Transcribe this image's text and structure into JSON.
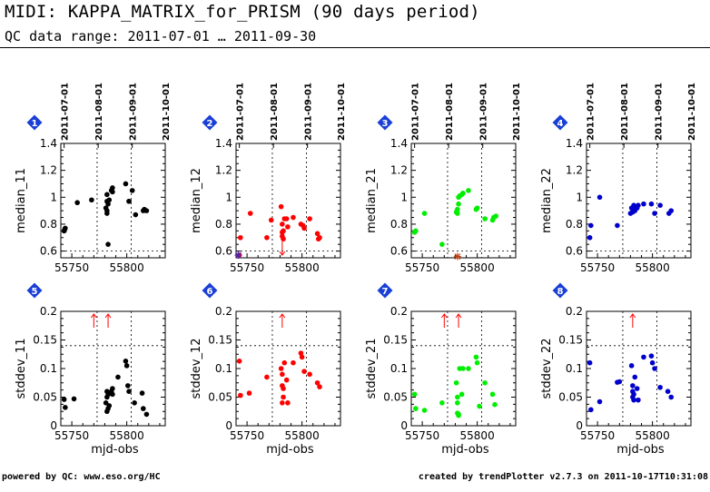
{
  "header": {
    "title": "MIDI: KAPPA_MATRIX_for_PRISM (90 days period)",
    "subtitle": "QC data range: 2011-07-01 … 2011-09-30"
  },
  "footer": {
    "left": "powered by QC: www.eso.org/HC",
    "right": "created by trendPlotter v2.7.3 on 2011-10-17T10:31:08"
  },
  "colors": {
    "series_11": "#000000",
    "series_12": "#ff0000",
    "series_21": "#00ee00",
    "series_22": "#0000cc",
    "badge": "#1a3fd6",
    "outlier_arrow": "#ff0000"
  },
  "chart_data": [
    {
      "panel": "1",
      "type": "scatter",
      "color": "#000000",
      "ylabel": "median_11",
      "xlim": [
        55740,
        55835
      ],
      "ylim": [
        0.55,
        1.4
      ],
      "yticks": [
        "0.6",
        "0.8",
        "1",
        "1.2",
        "1.4"
      ],
      "xticks": [
        "55750",
        "55800"
      ],
      "date_ticks": [
        "2011-07-01",
        "2011-08-01",
        "2011-09-01",
        "2011-10-01"
      ],
      "ref_x": [
        55773,
        55804
      ],
      "ref_y": [
        0.6
      ],
      "points": [
        [
          55743,
          0.75
        ],
        [
          55743.5,
          0.76
        ],
        [
          55744,
          0.77
        ],
        [
          55755,
          0.96
        ],
        [
          55768,
          0.98
        ],
        [
          55781,
          0.92
        ],
        [
          55782,
          0.97
        ],
        [
          55782,
          1.02
        ],
        [
          55782,
          0.88
        ],
        [
          55782,
          0.9
        ],
        [
          55783,
          0.95
        ],
        [
          55783,
          0.65
        ],
        [
          55784,
          0.98
        ],
        [
          55786,
          1.05
        ],
        [
          55787,
          1.07
        ],
        [
          55787,
          1.04
        ],
        [
          55799,
          1.1
        ],
        [
          55802,
          0.97
        ],
        [
          55802,
          0.97
        ],
        [
          55805,
          1.05
        ],
        [
          55808,
          0.87
        ],
        [
          55815,
          0.9
        ],
        [
          55816,
          0.91
        ],
        [
          55818,
          0.9
        ]
      ],
      "outliers_up": [],
      "outliers_down": []
    },
    {
      "panel": "2",
      "type": "scatter",
      "color": "#ff0000",
      "ylabel": "median_12",
      "xlim": [
        55740,
        55835
      ],
      "ylim": [
        0.55,
        1.4
      ],
      "yticks": [
        "0.6",
        "0.8",
        "1",
        "1.2",
        "1.4"
      ],
      "xticks": [
        "55750",
        "55800"
      ],
      "date_ticks": [
        "2011-07-01",
        "2011-08-01",
        "2011-09-01",
        "2011-10-01"
      ],
      "ref_x": [
        55773,
        55804
      ],
      "ref_y": [
        0.6
      ],
      "points": [
        [
          55744,
          0.7
        ],
        [
          55743,
          0.57
        ],
        [
          55753,
          0.88
        ],
        [
          55768,
          0.7
        ],
        [
          55772,
          0.83
        ],
        [
          55781,
          0.93
        ],
        [
          55782,
          0.8
        ],
        [
          55782,
          0.74
        ],
        [
          55782,
          0.71
        ],
        [
          55783,
          0.69
        ],
        [
          55783,
          0.75
        ],
        [
          55784,
          0.84
        ],
        [
          55786,
          0.84
        ],
        [
          55787,
          0.78
        ],
        [
          55792,
          0.85
        ],
        [
          55799,
          0.8
        ],
        [
          55801,
          0.79
        ],
        [
          55802,
          0.77
        ],
        [
          55807,
          0.84
        ],
        [
          55814,
          0.73
        ],
        [
          55815,
          0.69
        ],
        [
          55816,
          0.7
        ]
      ],
      "marker_points": [
        [
          55742,
          0.57
        ]
      ],
      "outliers_up": [],
      "outliers_down": [
        55782
      ]
    },
    {
      "panel": "3",
      "type": "scatter",
      "color": "#00ee00",
      "ylabel": "median_21",
      "xlim": [
        55740,
        55835
      ],
      "ylim": [
        0.55,
        1.4
      ],
      "yticks": [
        "0.6",
        "0.8",
        "1",
        "1.2",
        "1.4"
      ],
      "xticks": [
        "55750",
        "55800"
      ],
      "date_ticks": [
        "2011-07-01",
        "2011-08-01",
        "2011-09-01",
        "2011-10-01"
      ],
      "ref_x": [
        55773,
        55804
      ],
      "ref_y": [
        0.6
      ],
      "points": [
        [
          55743,
          0.74
        ],
        [
          55744,
          0.75
        ],
        [
          55752,
          0.88
        ],
        [
          55768,
          0.65
        ],
        [
          55781,
          0.89
        ],
        [
          55782,
          0.91
        ],
        [
          55782,
          0.88
        ],
        [
          55783,
          0.95
        ],
        [
          55783,
          1.0
        ],
        [
          55784,
          1.01
        ],
        [
          55786,
          1.02
        ],
        [
          55787,
          1.03
        ],
        [
          55792,
          1.05
        ],
        [
          55799,
          0.91
        ],
        [
          55800,
          0.92
        ],
        [
          55807,
          0.84
        ],
        [
          55814,
          0.83
        ],
        [
          55815,
          0.85
        ],
        [
          55817,
          0.86
        ]
      ],
      "marker_points": [
        [
          55782,
          0.56
        ]
      ],
      "outliers_up": [],
      "outliers_down": []
    },
    {
      "panel": "4",
      "type": "scatter",
      "color": "#0000cc",
      "ylabel": "median_22",
      "xlim": [
        55740,
        55835
      ],
      "ylim": [
        0.55,
        1.4
      ],
      "yticks": [
        "0.6",
        "0.8",
        "1",
        "1.2",
        "1.4"
      ],
      "xticks": [
        "55750",
        "55800"
      ],
      "date_ticks": [
        "2011-07-01",
        "2011-08-01",
        "2011-09-01",
        "2011-10-01"
      ],
      "ref_x": [
        55773,
        55804
      ],
      "ref_y": [
        0.6
      ],
      "points": [
        [
          55743,
          0.7
        ],
        [
          55744,
          0.79
        ],
        [
          55752,
          1.0
        ],
        [
          55768,
          0.79
        ],
        [
          55780,
          0.88
        ],
        [
          55781,
          0.92
        ],
        [
          55782,
          0.91
        ],
        [
          55782,
          0.89
        ],
        [
          55783,
          0.94
        ],
        [
          55784,
          0.9
        ],
        [
          55786,
          0.92
        ],
        [
          55787,
          0.94
        ],
        [
          55792,
          0.95
        ],
        [
          55799,
          0.95
        ],
        [
          55802,
          0.88
        ],
        [
          55807,
          0.94
        ],
        [
          55815,
          0.88
        ],
        [
          55817,
          0.9
        ]
      ],
      "outliers_up": [],
      "outliers_down": []
    },
    {
      "panel": "5",
      "type": "scatter",
      "color": "#000000",
      "ylabel": "stddev_11",
      "xlabel": "mjd-obs",
      "xlim": [
        55740,
        55835
      ],
      "ylim": [
        0,
        0.2
      ],
      "yticks": [
        "0",
        "0.05",
        "0.1",
        "0.15",
        "0.2"
      ],
      "xticks": [
        "55750",
        "55800"
      ],
      "ref_x": [
        55773,
        55804
      ],
      "ref_y": [
        0.14
      ],
      "points": [
        [
          55743,
          0.046
        ],
        [
          55744,
          0.032
        ],
        [
          55752,
          0.047
        ],
        [
          55781,
          0.04
        ],
        [
          55782,
          0.05
        ],
        [
          55782,
          0.06
        ],
        [
          55782,
          0.025
        ],
        [
          55783,
          0.055
        ],
        [
          55783,
          0.03
        ],
        [
          55784,
          0.035
        ],
        [
          55786,
          0.06
        ],
        [
          55787,
          0.065
        ],
        [
          55787,
          0.055
        ],
        [
          55792,
          0.085
        ],
        [
          55799,
          0.113
        ],
        [
          55800,
          0.105
        ],
        [
          55801,
          0.07
        ],
        [
          55802,
          0.06
        ],
        [
          55807,
          0.04
        ],
        [
          55814,
          0.057
        ],
        [
          55815,
          0.03
        ],
        [
          55818,
          0.02
        ]
      ],
      "outliers_up": [
        55770,
        55783
      ],
      "outliers_down": []
    },
    {
      "panel": "6",
      "type": "scatter",
      "color": "#ff0000",
      "ylabel": "stddev_12",
      "xlabel": "mjd-obs",
      "xlim": [
        55740,
        55835
      ],
      "ylim": [
        0,
        0.2
      ],
      "yticks": [
        "0",
        "0.05",
        "0.1",
        "0.15",
        "0.2"
      ],
      "xticks": [
        "55750",
        "55800"
      ],
      "ref_x": [
        55773,
        55804
      ],
      "ref_y": [
        0.14
      ],
      "points": [
        [
          55743,
          0.113
        ],
        [
          55744,
          0.053
        ],
        [
          55752,
          0.057
        ],
        [
          55768,
          0.085
        ],
        [
          55781,
          0.1
        ],
        [
          55782,
          0.09
        ],
        [
          55782,
          0.07
        ],
        [
          55782,
          0.04
        ],
        [
          55783,
          0.05
        ],
        [
          55783,
          0.065
        ],
        [
          55784,
          0.11
        ],
        [
          55786,
          0.08
        ],
        [
          55787,
          0.04
        ],
        [
          55792,
          0.11
        ],
        [
          55799,
          0.127
        ],
        [
          55800,
          0.12
        ],
        [
          55802,
          0.095
        ],
        [
          55807,
          0.09
        ],
        [
          55814,
          0.075
        ],
        [
          55816,
          0.068
        ]
      ],
      "outliers_up": [
        55782
      ],
      "outliers_down": []
    },
    {
      "panel": "7",
      "type": "scatter",
      "color": "#00ee00",
      "ylabel": "stddev_21",
      "xlabel": "mjd-obs",
      "xlim": [
        55740,
        55835
      ],
      "ylim": [
        0,
        0.2
      ],
      "yticks": [
        "0",
        "0.05",
        "0.1",
        "0.15",
        "0.2"
      ],
      "xticks": [
        "55750",
        "55800"
      ],
      "ref_x": [
        55773,
        55804
      ],
      "ref_y": [
        0.14
      ],
      "points": [
        [
          55743,
          0.055
        ],
        [
          55744,
          0.03
        ],
        [
          55752,
          0.027
        ],
        [
          55768,
          0.04
        ],
        [
          55781,
          0.075
        ],
        [
          55782,
          0.04
        ],
        [
          55782,
          0.05
        ],
        [
          55782,
          0.022
        ],
        [
          55783,
          0.018
        ],
        [
          55783,
          0.02
        ],
        [
          55784,
          0.1
        ],
        [
          55786,
          0.055
        ],
        [
          55787,
          0.1
        ],
        [
          55792,
          0.1
        ],
        [
          55799,
          0.12
        ],
        [
          55800,
          0.11
        ],
        [
          55802,
          0.034
        ],
        [
          55807,
          0.075
        ],
        [
          55814,
          0.055
        ],
        [
          55816,
          0.037
        ]
      ],
      "outliers_up": [
        55770,
        55783
      ],
      "outliers_down": []
    },
    {
      "panel": "8",
      "type": "scatter",
      "color": "#0000cc",
      "ylabel": "stddev_22",
      "xlabel": "mjd-obs",
      "xlim": [
        55740,
        55835
      ],
      "ylim": [
        0,
        0.2
      ],
      "yticks": [
        "0",
        "0.05",
        "0.1",
        "0.15",
        "0.2"
      ],
      "xticks": [
        "55750",
        "55800"
      ],
      "ref_x": [
        55773,
        55804
      ],
      "ref_y": [
        0.14
      ],
      "points": [
        [
          55743,
          0.11
        ],
        [
          55744,
          0.028
        ],
        [
          55752,
          0.042
        ],
        [
          55768,
          0.076
        ],
        [
          55770,
          0.077
        ],
        [
          55781,
          0.105
        ],
        [
          55782,
          0.07
        ],
        [
          55782,
          0.05
        ],
        [
          55782,
          0.06
        ],
        [
          55783,
          0.055
        ],
        [
          55783,
          0.045
        ],
        [
          55784,
          0.085
        ],
        [
          55786,
          0.065
        ],
        [
          55787,
          0.045
        ],
        [
          55792,
          0.12
        ],
        [
          55799,
          0.122
        ],
        [
          55800,
          0.11
        ],
        [
          55802,
          0.1
        ],
        [
          55807,
          0.067
        ],
        [
          55814,
          0.06
        ],
        [
          55817,
          0.05
        ]
      ],
      "outliers_up": [
        55782
      ],
      "outliers_down": []
    }
  ]
}
